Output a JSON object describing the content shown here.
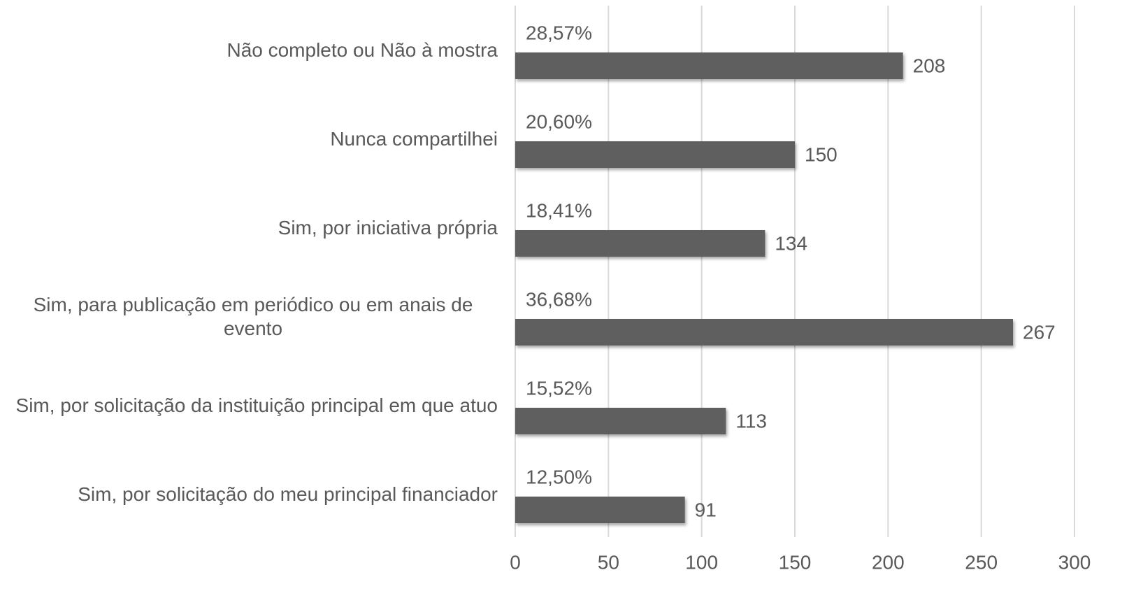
{
  "chart_data": {
    "type": "bar",
    "orientation": "horizontal",
    "categories": [
      "Não completo ou Não à mostra",
      "Nunca compartilhei",
      "Sim, por iniciativa própria",
      "Sim, para publicação em periódico ou em anais de evento",
      "Sim, por solicitação da instituição principal em que atuo",
      "Sim, por solicitação do meu principal financiador"
    ],
    "values": [
      208,
      150,
      134,
      267,
      113,
      91
    ],
    "percent_labels": [
      "28,57%",
      "20,60%",
      "18,41%",
      "36,68%",
      "15,52%",
      "12,50%"
    ],
    "color": "#5f5f5f",
    "xlim": [
      0,
      300
    ],
    "xticks": [
      0,
      50,
      100,
      150,
      200,
      250,
      300
    ],
    "grid": true
  }
}
